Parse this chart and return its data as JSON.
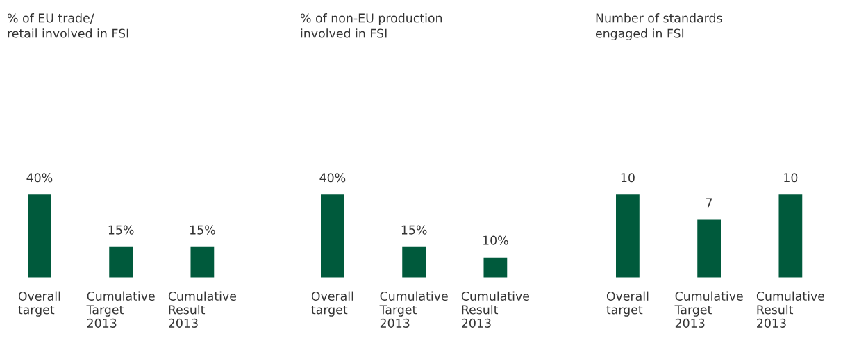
{
  "chart_data": [
    {
      "type": "bar",
      "title": "% of EU trade/\nretail involved in FSI",
      "categories": [
        "Overall\ntarget",
        "Cumulative\nTarget\n2013",
        "Cumulative\nResult\n2013"
      ],
      "values": [
        40,
        15,
        15
      ],
      "value_labels": [
        "40%",
        "15%",
        "15%"
      ],
      "color": "#005a3c",
      "tick_labels": "x",
      "grid": false,
      "legend": false
    },
    {
      "type": "bar",
      "title": "% of non-EU production\ninvolved in FSI",
      "categories": [
        "Overall\ntarget",
        "Cumulative\nTarget\n2013",
        "Cumulative\nResult\n2013"
      ],
      "values": [
        40,
        15,
        10
      ],
      "value_labels": [
        "40%",
        "15%",
        "10%"
      ],
      "color": "#005a3c",
      "tick_labels": "x",
      "grid": false,
      "legend": false
    },
    {
      "type": "bar",
      "title": "Number of standards\nengaged in FSI",
      "categories": [
        "Overall\ntarget",
        "Cumulative\nTarget\n2013",
        "Cumulative\nResult\n2013"
      ],
      "values": [
        10,
        7,
        10
      ],
      "data_labels": true,
      "color": "#005a3c",
      "tick_labels": "x",
      "grid": false,
      "legend": false
    }
  ]
}
